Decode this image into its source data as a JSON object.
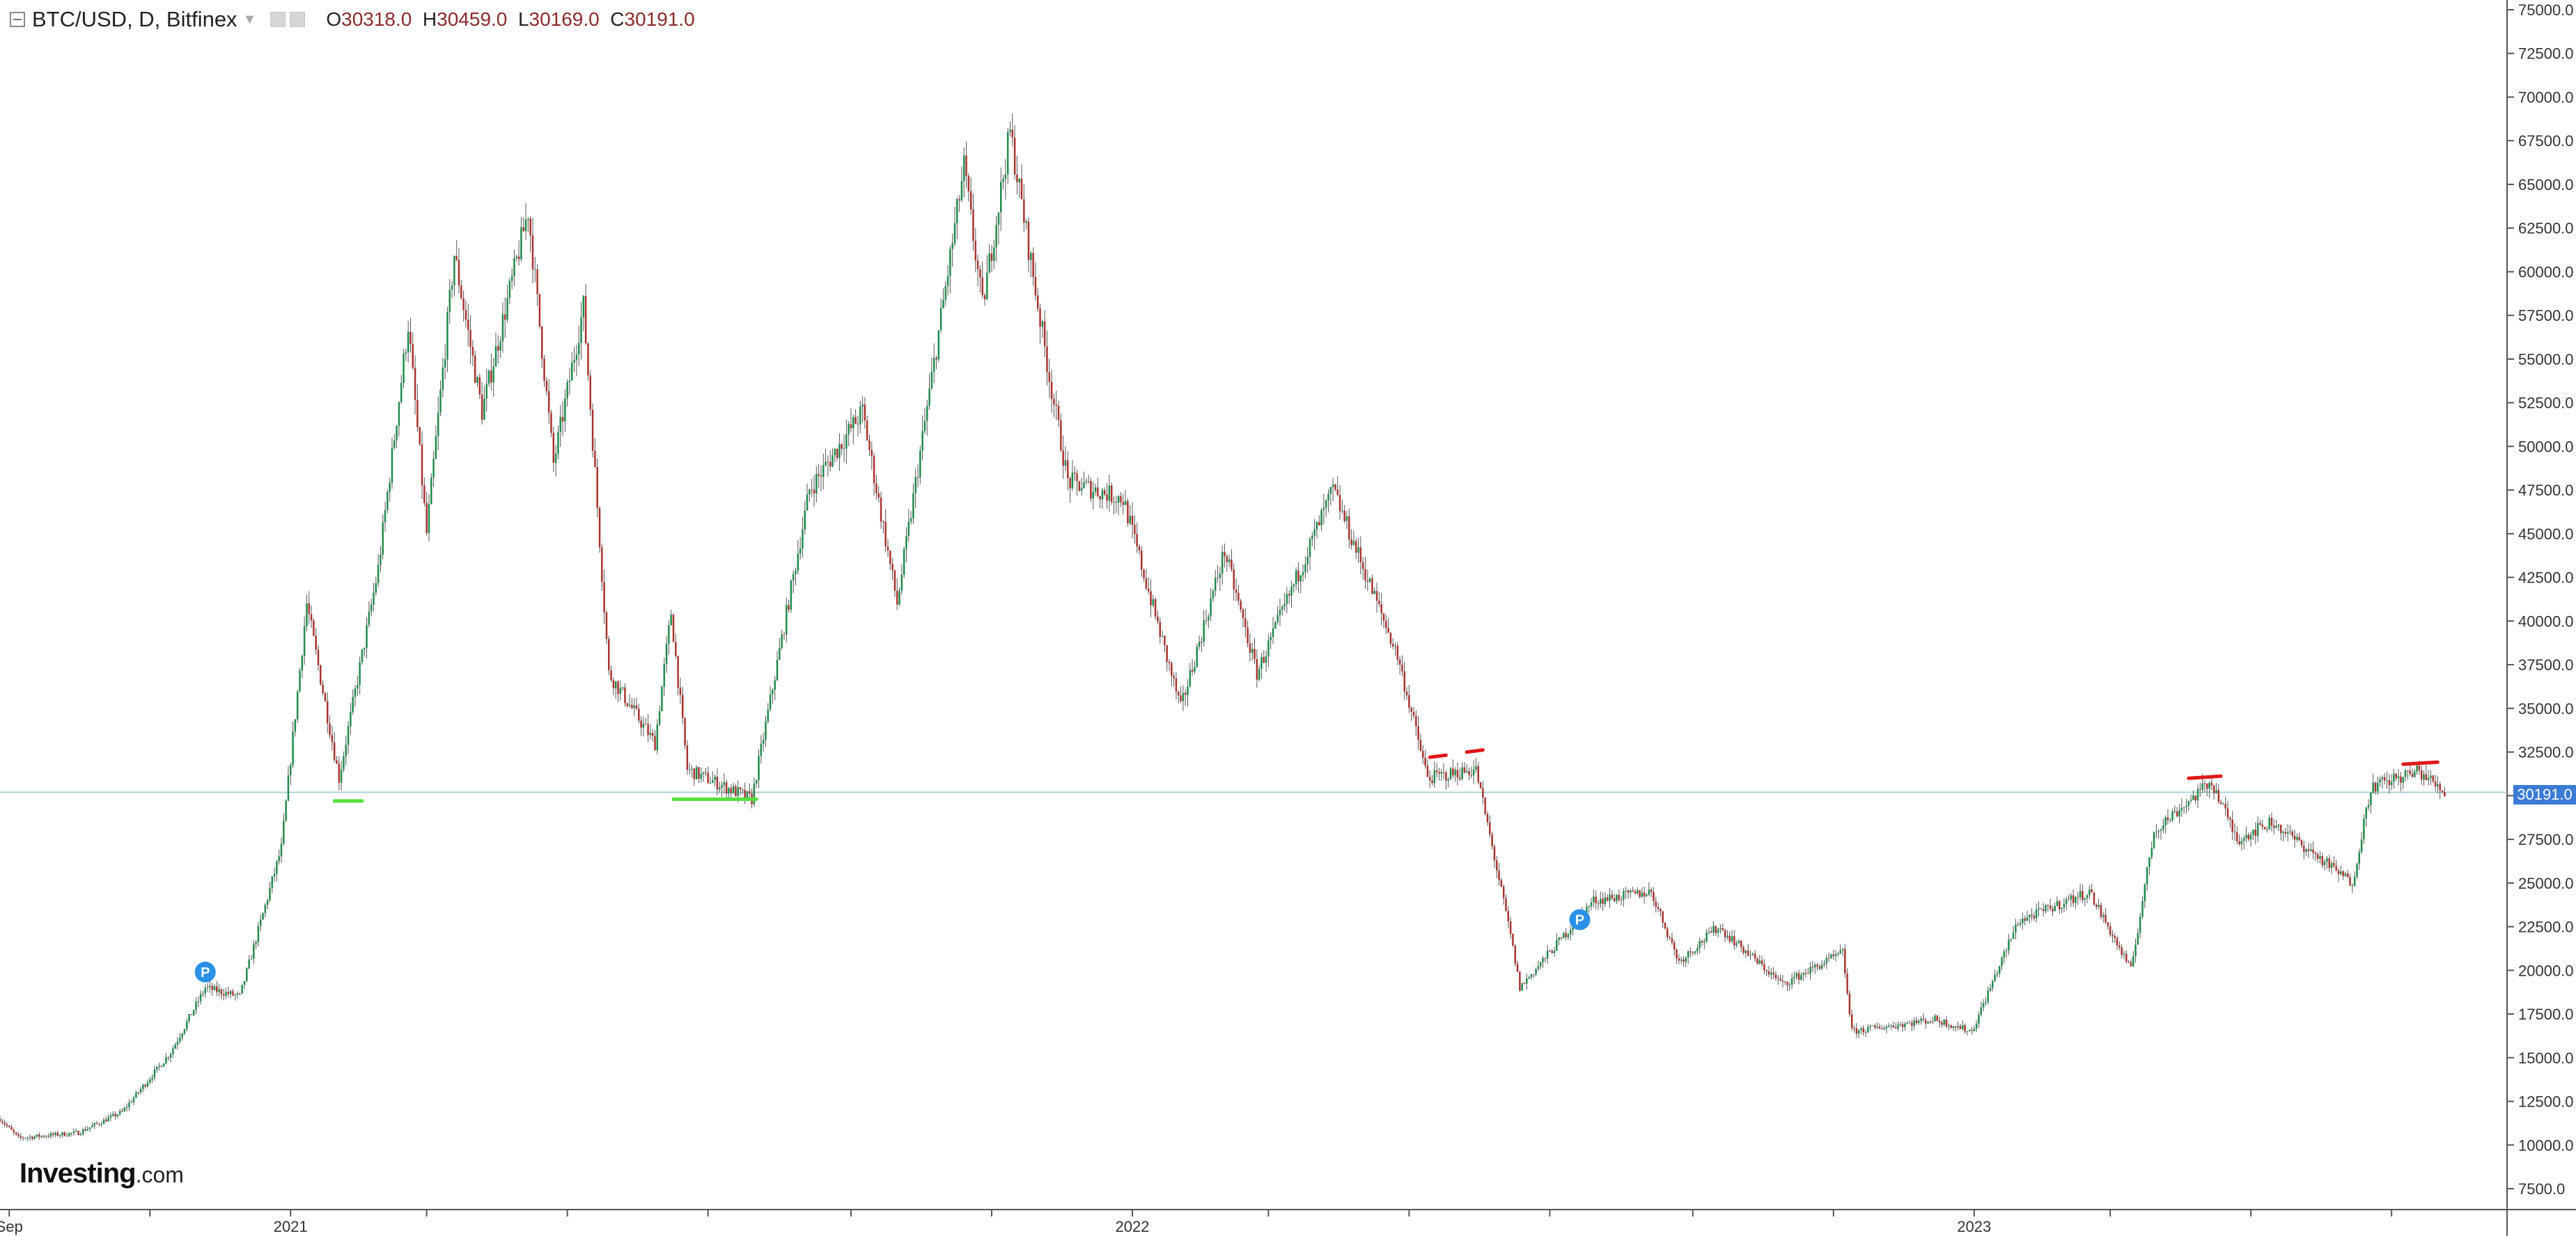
{
  "header": {
    "symbol": "BTC/USD, D, Bitfinex",
    "open_label": "O",
    "open": "30318.0",
    "high_label": "H",
    "high": "30459.0",
    "low_label": "L",
    "low": "30169.0",
    "close_label": "C",
    "close": "30191.0"
  },
  "logo": {
    "text": "Investing",
    "suffix": ".com"
  },
  "last_price_tag": "30191.0",
  "colors": {
    "up": "#1f8a4c",
    "down": "#a8322e",
    "wick": "#555555",
    "price_line": "#a9d2d6",
    "tag": "#3a7bd5",
    "support": "#55e03a",
    "resistance": "#e01818",
    "marker": "#2a90e8"
  },
  "chart_data": {
    "type": "candlestick",
    "title": "",
    "xlabel": "",
    "ylabel": "",
    "x_ticks": [
      "Sep",
      "2021",
      "2022",
      "2023"
    ],
    "y_ticks": [
      7500,
      10000,
      12500,
      15000,
      17500,
      20000,
      22500,
      25000,
      27500,
      30000,
      32500,
      35000,
      37500,
      40000,
      42500,
      45000,
      47500,
      50000,
      52500,
      55000,
      57500,
      60000,
      62500,
      65000,
      67500,
      70000,
      72500,
      75000
    ],
    "ylim": [
      6500,
      75500
    ],
    "xlim": [
      "2020-08-28",
      "2023-08-08"
    ],
    "grid": false,
    "last_price": 30191.0,
    "price_path": [
      [
        "2020-08-28",
        11500
      ],
      [
        "2020-09-05",
        10400
      ],
      [
        "2020-10-01",
        10700
      ],
      [
        "2020-10-20",
        11900
      ],
      [
        "2020-11-10",
        15300
      ],
      [
        "2020-11-25",
        19000
      ],
      [
        "2020-12-10",
        18500
      ],
      [
        "2020-12-28",
        27000
      ],
      [
        "2021-01-08",
        41000
      ],
      [
        "2021-01-22",
        31000
      ],
      [
        "2021-02-08",
        43000
      ],
      [
        "2021-02-21",
        57000
      ],
      [
        "2021-03-01",
        45000
      ],
      [
        "2021-03-13",
        61000
      ],
      [
        "2021-03-25",
        52000
      ],
      [
        "2021-04-14",
        63500
      ],
      [
        "2021-04-25",
        49000
      ],
      [
        "2021-05-08",
        58000
      ],
      [
        "2021-05-19",
        37000
      ],
      [
        "2021-06-08",
        33000
      ],
      [
        "2021-06-15",
        40500
      ],
      [
        "2021-06-22",
        31500
      ],
      [
        "2021-07-20",
        29800
      ],
      [
        "2021-08-14",
        47500
      ],
      [
        "2021-09-06",
        52000
      ],
      [
        "2021-09-21",
        41000
      ],
      [
        "2021-10-20",
        66000
      ],
      [
        "2021-10-28",
        58000
      ],
      [
        "2021-11-09",
        68000
      ],
      [
        "2021-11-26",
        54000
      ],
      [
        "2021-12-04",
        48000
      ],
      [
        "2021-12-28",
        47000
      ],
      [
        "2022-01-22",
        35000
      ],
      [
        "2022-02-10",
        44000
      ],
      [
        "2022-02-24",
        37000
      ],
      [
        "2022-03-29",
        47500
      ],
      [
        "2022-04-26",
        38000
      ],
      [
        "2022-05-09",
        31000
      ],
      [
        "2022-05-30",
        31500
      ],
      [
        "2022-06-14",
        22000
      ],
      [
        "2022-06-18",
        19000
      ],
      [
        "2022-07-20",
        24000
      ],
      [
        "2022-08-14",
        24500
      ],
      [
        "2022-08-26",
        20500
      ],
      [
        "2022-09-12",
        22500
      ],
      [
        "2022-10-10",
        19200
      ],
      [
        "2022-11-05",
        21000
      ],
      [
        "2022-11-09",
        16500
      ],
      [
        "2022-12-15",
        17200
      ],
      [
        "2022-12-31",
        16500
      ],
      [
        "2023-01-20",
        22800
      ],
      [
        "2023-02-20",
        24500
      ],
      [
        "2023-03-10",
        20000
      ],
      [
        "2023-03-20",
        28000
      ],
      [
        "2023-04-14",
        30800
      ],
      [
        "2023-04-25",
        27500
      ],
      [
        "2023-05-10",
        28500
      ],
      [
        "2023-06-14",
        25000
      ],
      [
        "2023-06-22",
        30500
      ],
      [
        "2023-07-13",
        31400
      ],
      [
        "2023-07-24",
        30191
      ]
    ],
    "markers": [
      {
        "label": "P",
        "date": "2020-11-25",
        "price": 19900
      },
      {
        "label": "P",
        "date": "2022-07-14",
        "price": 22900
      }
    ],
    "annotations": [
      {
        "type": "support",
        "from": "2021-01-20",
        "to": "2021-02-01",
        "price": 29700
      },
      {
        "type": "support",
        "from": "2021-06-16",
        "to": "2021-07-22",
        "price": 29800
      },
      {
        "type": "resistance",
        "from": "2022-05-10",
        "to": "2022-05-17",
        "price": 32200
      },
      {
        "type": "resistance",
        "from": "2022-05-26",
        "to": "2022-06-02",
        "price": 32500
      },
      {
        "type": "resistance",
        "from": "2023-04-04",
        "to": "2023-04-18",
        "price": 31000
      },
      {
        "type": "resistance",
        "from": "2023-07-06",
        "to": "2023-07-21",
        "price": 31800
      }
    ]
  }
}
